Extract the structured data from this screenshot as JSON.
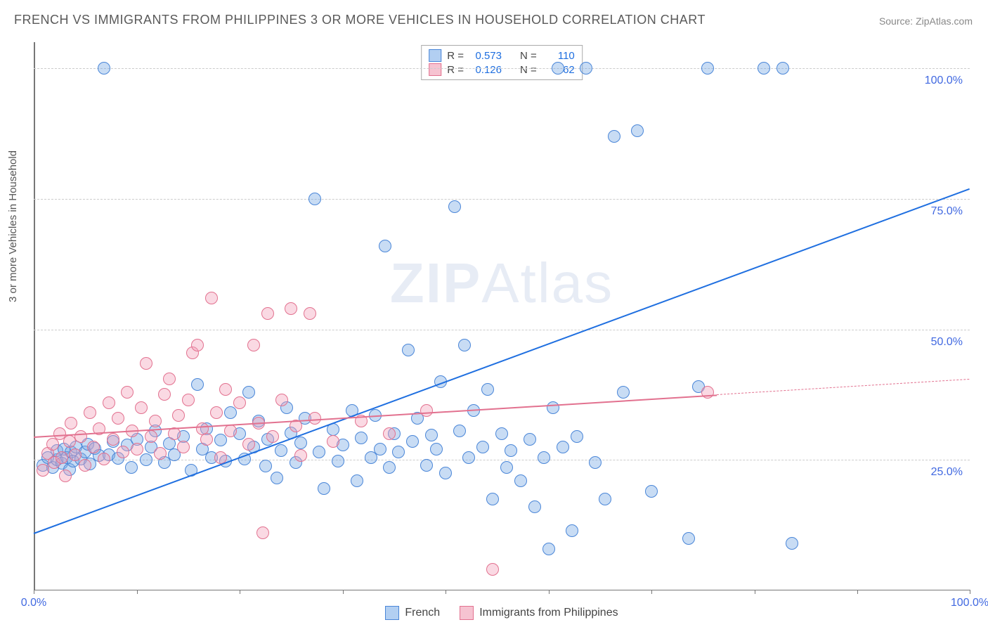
{
  "title": "FRENCH VS IMMIGRANTS FROM PHILIPPINES 3 OR MORE VEHICLES IN HOUSEHOLD CORRELATION CHART",
  "source": "Source: ZipAtlas.com",
  "ylabel": "3 or more Vehicles in Household",
  "watermark_a": "ZIP",
  "watermark_b": "Atlas",
  "chart": {
    "type": "scatter",
    "background_color": "#ffffff",
    "grid_color": "#cccccc",
    "axis_color": "#777777",
    "tick_label_color": "#4169e1",
    "xlim": [
      0,
      100
    ],
    "ylim": [
      0,
      105
    ],
    "x_ticks": [
      0,
      11,
      22,
      33,
      44,
      55,
      66,
      77,
      88,
      100
    ],
    "x_tick_labels": {
      "0": "0.0%",
      "100": "100.0%"
    },
    "y_gridlines": [
      25,
      50,
      75,
      100
    ],
    "y_tick_labels": {
      "25": "25.0%",
      "50": "50.0%",
      "75": "75.0%",
      "100": "100.0%"
    },
    "marker_radius": 9,
    "series": [
      {
        "id": "french",
        "label": "French",
        "fill": "rgba(118,168,228,0.40)",
        "stroke": "#4a86d8",
        "swatch_fill": "#b2cff2",
        "swatch_border": "#4a86d8",
        "r_value": "0.573",
        "n_value": "110",
        "regression": {
          "x0": 0,
          "y0": 11,
          "x1": 100,
          "y1": 77,
          "color": "#1f6fe0",
          "solid_until_x": 100
        },
        "points": [
          [
            1,
            24
          ],
          [
            1.5,
            25.5
          ],
          [
            2,
            23.5
          ],
          [
            2.5,
            25
          ],
          [
            2.5,
            26.8
          ],
          [
            3,
            24.3
          ],
          [
            3.2,
            27
          ],
          [
            3.5,
            25.5
          ],
          [
            3.8,
            23.2
          ],
          [
            4,
            26.5
          ],
          [
            4.2,
            24.8
          ],
          [
            4.5,
            27.5
          ],
          [
            5,
            25.2
          ],
          [
            5.5,
            26.5
          ],
          [
            5.8,
            28
          ],
          [
            6,
            24.2
          ],
          [
            6.5,
            27.2
          ],
          [
            7,
            25.8
          ],
          [
            7.5,
            100
          ],
          [
            8,
            26
          ],
          [
            8.5,
            28.5
          ],
          [
            9,
            25.3
          ],
          [
            10,
            27.8
          ],
          [
            10.4,
            23.5
          ],
          [
            11,
            29
          ],
          [
            12,
            25
          ],
          [
            12.5,
            27.5
          ],
          [
            13,
            30.5
          ],
          [
            14,
            24.5
          ],
          [
            14.5,
            28.2
          ],
          [
            15,
            26
          ],
          [
            16,
            29.5
          ],
          [
            16.8,
            23
          ],
          [
            17.5,
            39.5
          ],
          [
            18,
            27
          ],
          [
            18.5,
            31
          ],
          [
            19,
            25.5
          ],
          [
            20,
            28.8
          ],
          [
            20.5,
            24.8
          ],
          [
            21,
            34
          ],
          [
            22,
            30
          ],
          [
            22.5,
            25.2
          ],
          [
            23,
            38
          ],
          [
            23.5,
            27.5
          ],
          [
            24,
            32.5
          ],
          [
            24.8,
            23.8
          ],
          [
            25,
            29
          ],
          [
            26,
            21.5
          ],
          [
            26.4,
            26.8
          ],
          [
            27,
            35
          ],
          [
            27.5,
            30.2
          ],
          [
            28,
            24.5
          ],
          [
            28.5,
            28.3
          ],
          [
            29,
            33
          ],
          [
            30,
            75
          ],
          [
            30.5,
            26.5
          ],
          [
            31,
            19.5
          ],
          [
            32,
            30.8
          ],
          [
            32.5,
            24.8
          ],
          [
            33,
            27.8
          ],
          [
            34,
            34.5
          ],
          [
            34.5,
            21
          ],
          [
            35,
            29.2
          ],
          [
            36,
            25.5
          ],
          [
            36.5,
            33.5
          ],
          [
            37,
            27
          ],
          [
            37.5,
            66
          ],
          [
            38,
            23.5
          ],
          [
            38.5,
            30
          ],
          [
            39,
            26.5
          ],
          [
            40,
            46
          ],
          [
            40.5,
            28.5
          ],
          [
            41,
            33
          ],
          [
            42,
            24
          ],
          [
            42.5,
            29.8
          ],
          [
            43,
            27
          ],
          [
            43.5,
            40
          ],
          [
            44,
            22.5
          ],
          [
            45,
            73.5
          ],
          [
            45.5,
            30.5
          ],
          [
            46,
            47
          ],
          [
            46.5,
            25.5
          ],
          [
            47,
            34.5
          ],
          [
            48,
            27.5
          ],
          [
            48.5,
            38.5
          ],
          [
            49,
            17.5
          ],
          [
            50,
            30
          ],
          [
            50.5,
            23.5
          ],
          [
            51,
            26.8
          ],
          [
            52,
            21
          ],
          [
            53,
            29
          ],
          [
            53.5,
            16
          ],
          [
            54.5,
            25.5
          ],
          [
            55,
            8
          ],
          [
            55.5,
            35
          ],
          [
            56,
            100
          ],
          [
            56.5,
            27.5
          ],
          [
            57.5,
            11.5
          ],
          [
            58,
            29.5
          ],
          [
            59,
            100
          ],
          [
            60,
            24.5
          ],
          [
            61,
            17.5
          ],
          [
            62,
            87
          ],
          [
            63,
            38
          ],
          [
            64.5,
            88
          ],
          [
            66,
            19
          ],
          [
            70,
            10
          ],
          [
            71,
            39
          ],
          [
            72,
            100
          ],
          [
            78,
            100
          ],
          [
            80,
            100
          ],
          [
            81,
            9
          ]
        ]
      },
      {
        "id": "philippines",
        "label": "Immigrants from Philippines",
        "fill": "rgba(242,160,185,0.40)",
        "stroke": "#e2718f",
        "swatch_fill": "#f6c3d1",
        "swatch_border": "#e2718f",
        "r_value": "0.126",
        "n_value": "62",
        "regression": {
          "x0": 0,
          "y0": 29.5,
          "x1": 100,
          "y1": 40.5,
          "color": "#e2718f",
          "solid_until_x": 73
        },
        "points": [
          [
            1,
            23
          ],
          [
            1.5,
            26.2
          ],
          [
            2,
            28
          ],
          [
            2.2,
            24.5
          ],
          [
            2.8,
            30
          ],
          [
            3,
            25.5
          ],
          [
            3.4,
            22
          ],
          [
            3.8,
            28.5
          ],
          [
            4,
            32
          ],
          [
            4.4,
            26
          ],
          [
            5,
            29.5
          ],
          [
            5.5,
            24
          ],
          [
            6,
            34
          ],
          [
            6.4,
            27.5
          ],
          [
            7,
            31
          ],
          [
            7.5,
            25.2
          ],
          [
            8,
            36
          ],
          [
            8.5,
            29
          ],
          [
            9,
            33
          ],
          [
            9.5,
            26.5
          ],
          [
            10,
            38
          ],
          [
            10.5,
            30.5
          ],
          [
            11,
            27
          ],
          [
            11.5,
            35
          ],
          [
            12,
            43.5
          ],
          [
            12.5,
            29.5
          ],
          [
            13,
            32.5
          ],
          [
            13.5,
            26.2
          ],
          [
            14,
            37.5
          ],
          [
            14.5,
            40.5
          ],
          [
            15,
            30
          ],
          [
            15.5,
            33.5
          ],
          [
            16,
            27.5
          ],
          [
            16.5,
            36.5
          ],
          [
            17,
            45.5
          ],
          [
            17.5,
            47
          ],
          [
            18,
            31
          ],
          [
            18.5,
            29
          ],
          [
            19,
            56
          ],
          [
            19.5,
            34
          ],
          [
            20,
            25.5
          ],
          [
            20.5,
            38.5
          ],
          [
            21,
            30.5
          ],
          [
            22,
            36
          ],
          [
            23,
            28
          ],
          [
            23.5,
            47
          ],
          [
            24,
            32
          ],
          [
            24.5,
            11
          ],
          [
            25,
            53
          ],
          [
            25.5,
            29.5
          ],
          [
            26.5,
            36.5
          ],
          [
            27.5,
            54
          ],
          [
            28,
            31.5
          ],
          [
            28.5,
            25.8
          ],
          [
            29.5,
            53
          ],
          [
            30,
            33
          ],
          [
            32,
            28.5
          ],
          [
            35,
            32.5
          ],
          [
            38,
            30
          ],
          [
            42,
            34.5
          ],
          [
            49,
            4
          ],
          [
            72,
            38
          ]
        ]
      }
    ]
  },
  "legend_top": {
    "r_label": "R =",
    "n_label": "N ="
  }
}
